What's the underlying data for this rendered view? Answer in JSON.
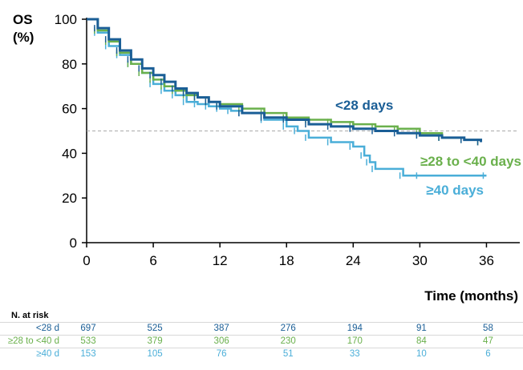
{
  "chart_data": {
    "type": "line",
    "title": "",
    "ylabel_line1": "OS",
    "ylabel_line2": "(%)",
    "xlabel": "Time (months)",
    "xlim": [
      0,
      39
    ],
    "ylim": [
      0,
      100
    ],
    "xticks": [
      "0",
      "6",
      "12",
      "18",
      "24",
      "30",
      "36"
    ],
    "yticks": [
      "0",
      "20",
      "40",
      "60",
      "80",
      "100"
    ],
    "reference_line_y": 50,
    "grid": false,
    "series": [
      {
        "name": "<28 days",
        "color": "#1a5e96",
        "x": [
          0,
          1,
          2,
          3,
          4,
          5,
          6,
          7,
          8,
          9,
          10,
          11,
          12,
          14,
          16,
          18,
          20,
          22,
          24,
          26,
          28,
          30,
          32,
          34,
          35.5
        ],
        "y": [
          100,
          96,
          91,
          86,
          82,
          78,
          75,
          72,
          69,
          67,
          65,
          63,
          61,
          58,
          56,
          55,
          53,
          52,
          51,
          50,
          49,
          48,
          47,
          46,
          45
        ]
      },
      {
        "name": "≥28 to <40 days",
        "color": "#6ab04c",
        "x": [
          0,
          1,
          2,
          3,
          4,
          5,
          6,
          7,
          8,
          9,
          10,
          11,
          12,
          14,
          16,
          18,
          20,
          22,
          24,
          26,
          28,
          30,
          32,
          34,
          35.5
        ],
        "y": [
          100,
          95,
          90,
          85,
          80,
          76,
          73,
          70,
          68,
          66,
          65,
          63,
          62,
          60,
          58,
          56,
          55,
          54,
          53,
          52,
          51,
          49,
          47,
          46,
          45
        ]
      },
      {
        "name": "≥40 days",
        "color": "#4aaed8",
        "x": [
          0,
          1,
          2,
          3,
          4,
          5,
          6,
          7,
          8,
          9,
          10,
          11,
          12,
          13,
          14,
          16,
          18,
          19,
          20,
          22,
          24,
          25,
          25.5,
          26,
          28.5,
          30,
          36
        ],
        "y": [
          100,
          94,
          88,
          84,
          80,
          76,
          71,
          68,
          66,
          63,
          62,
          61,
          60,
          59,
          58,
          55,
          52,
          50,
          47,
          45,
          43,
          39,
          36,
          33,
          30,
          30,
          30
        ]
      }
    ],
    "series_labels": [
      "<28 days",
      "≥28 to <40 days",
      "≥40 days"
    ]
  },
  "risk_table": {
    "title": "N. at risk",
    "times": [
      0,
      6,
      12,
      18,
      24,
      30,
      36
    ],
    "rows": [
      {
        "label": "<28 d",
        "color": "#1a5e96",
        "values": [
          "697",
          "525",
          "387",
          "276",
          "194",
          "91",
          "58"
        ]
      },
      {
        "label": "≥28 to <40 d",
        "color": "#6ab04c",
        "values": [
          "533",
          "379",
          "306",
          "230",
          "170",
          "84",
          "47"
        ]
      },
      {
        "label": "≥40 d",
        "color": "#4aaed8",
        "values": [
          "153",
          "105",
          "76",
          "51",
          "33",
          "10",
          "6"
        ]
      }
    ]
  }
}
